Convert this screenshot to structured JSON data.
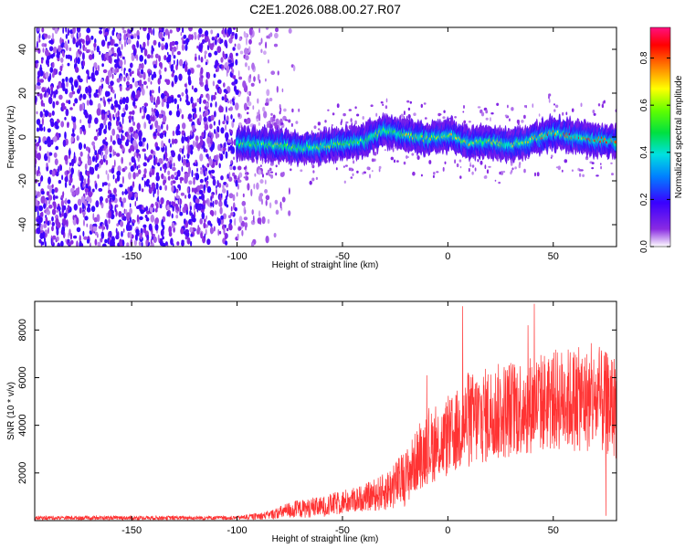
{
  "figure": {
    "title": "C2E1.2026.088.00.27.R07"
  },
  "chart_data": [
    {
      "type": "heatmap",
      "title": "C2E1.2026.088.00.27.R07",
      "xlabel": "Height of straight line (km)",
      "ylabel": "Frequency (Hz)",
      "xlim": [
        -196,
        80
      ],
      "ylim": [
        -50,
        50
      ],
      "x_ticks": [
        -150,
        -100,
        -50,
        0,
        50
      ],
      "y_ticks": [
        -40,
        -20,
        0,
        20,
        40
      ],
      "grid": false,
      "colorbar": {
        "label": "Normalized spectral amplitude",
        "range": [
          0,
          0.93
        ],
        "ticks": [
          0.0,
          0.2,
          0.4,
          0.6,
          0.8
        ],
        "colormap": "rainbow (white to purple, blue, cyan, green, yellow, red, magenta)"
      },
      "ridge_frequency_hz": {
        "x": [
          -100,
          -80,
          -65,
          -50,
          -40,
          -30,
          -20,
          -10,
          0,
          10,
          20,
          30,
          40,
          50,
          60,
          70,
          80
        ],
        "y": [
          -3,
          -4,
          -5,
          -3,
          -2,
          3,
          1,
          -1,
          1,
          -3,
          -2,
          -4,
          -1,
          2,
          0,
          -1,
          -2
        ]
      }
    },
    {
      "type": "line",
      "xlabel": "Height of straight line (km)",
      "ylabel": "SNR (10 * v/v)",
      "xlim": [
        -196,
        80
      ],
      "ylim": [
        0,
        9200
      ],
      "x_ticks": [
        -150,
        -100,
        -50,
        0,
        50
      ],
      "y_ticks": [
        2000,
        4000,
        6000,
        8000
      ],
      "grid": false,
      "series_color": "#ff3333",
      "envelope": {
        "x": [
          -196,
          -100,
          -85,
          -75,
          -60,
          -50,
          -40,
          -30,
          -20,
          -15,
          -10,
          0,
          10,
          20,
          30,
          40,
          50,
          60,
          70,
          80
        ],
        "upper": [
          200,
          200,
          400,
          800,
          1000,
          1300,
          1500,
          2000,
          3000,
          3800,
          4500,
          5000,
          6200,
          6500,
          6800,
          7000,
          7200,
          7300,
          7200,
          7000
        ],
        "lower": [
          30,
          30,
          50,
          80,
          150,
          250,
          400,
          400,
          600,
          1200,
          1500,
          1800,
          2200,
          2400,
          2600,
          2800,
          2900,
          2900,
          2800,
          2600
        ]
      },
      "spikes": [
        {
          "x": 7,
          "y": 9000
        },
        {
          "x": 41,
          "y": 9100
        },
        {
          "x": 38,
          "y": 8200
        },
        {
          "x": -10,
          "y": 6100
        },
        {
          "x": 75,
          "y": 200
        }
      ]
    }
  ]
}
